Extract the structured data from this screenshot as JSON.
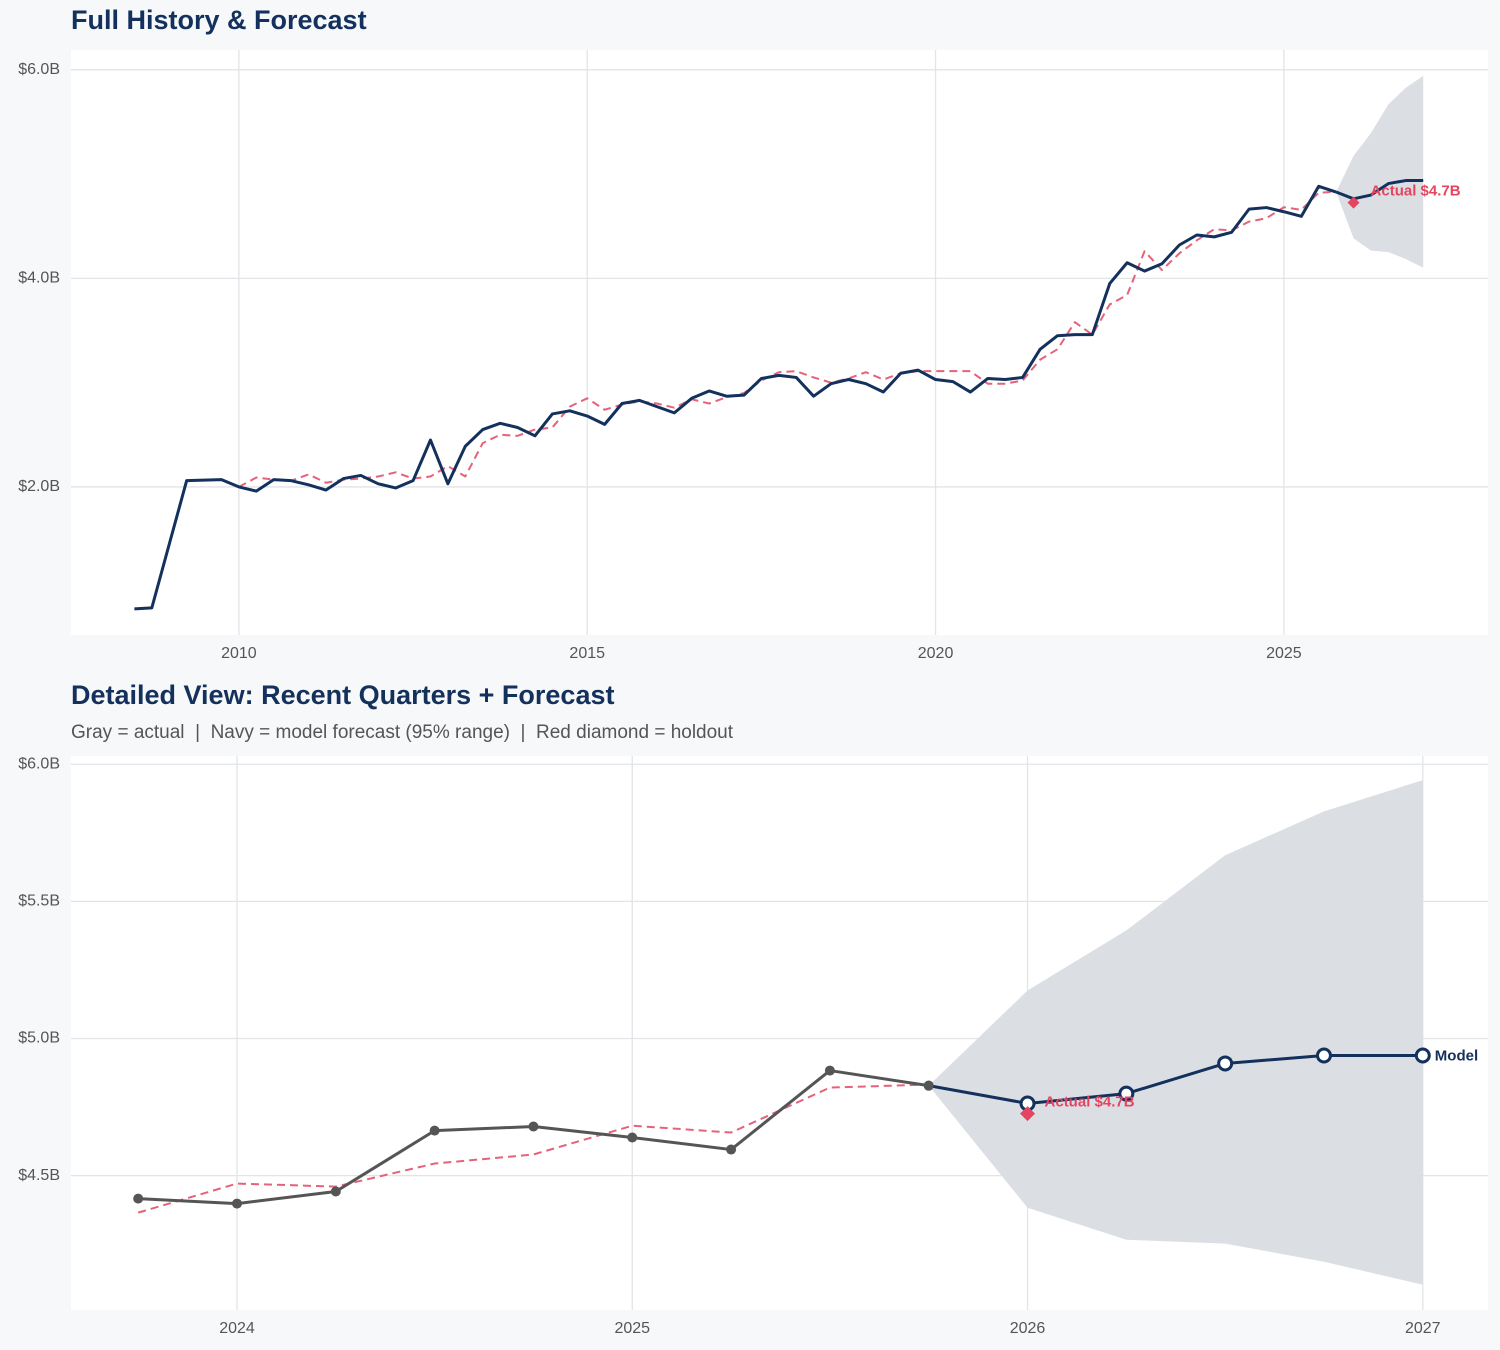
{
  "chart_data": [
    {
      "type": "line",
      "title": "Full History & Forecast",
      "xlim": [
        2007.59,
        2027.93
      ],
      "ylim": [
        0.58,
        6.19
      ],
      "xticks": [
        2010,
        2015,
        2020,
        2025
      ],
      "yticks": [
        {
          "value": 2,
          "label": "$2.0B"
        },
        {
          "value": 4,
          "label": "$4.0B"
        },
        {
          "value": 6,
          "label": "$6.0B"
        }
      ],
      "grid": true,
      "x": [
        2008.5,
        2008.75,
        2009,
        2009.25,
        2009.5,
        2009.75,
        2010,
        2010.25,
        2010.5,
        2010.75,
        2011,
        2011.25,
        2011.5,
        2011.75,
        2012,
        2012.25,
        2012.5,
        2012.75,
        2013,
        2013.25,
        2013.5,
        2013.75,
        2014,
        2014.25,
        2014.5,
        2014.75,
        2015,
        2015.25,
        2015.5,
        2015.75,
        2016,
        2016.25,
        2016.5,
        2016.75,
        2017,
        2017.25,
        2017.5,
        2017.75,
        2018,
        2018.25,
        2018.5,
        2018.75,
        2019,
        2019.25,
        2019.5,
        2019.75,
        2020,
        2020.25,
        2020.5,
        2020.75,
        2021,
        2021.25,
        2021.5,
        2021.75,
        2022,
        2022.25,
        2022.5,
        2022.75,
        2023,
        2023.25,
        2023.5,
        2023.75,
        2024,
        2024.25,
        2024.5,
        2024.75,
        2025,
        2025.25,
        2025.5,
        2025.75,
        2026,
        2026.25,
        2026.5,
        2026.75,
        2027
      ],
      "band": {
        "color": "#d9dde3",
        "lower": [
          null,
          null,
          null,
          null,
          null,
          null,
          null,
          null,
          null,
          null,
          null,
          null,
          null,
          null,
          null,
          null,
          null,
          null,
          null,
          null,
          null,
          null,
          null,
          null,
          null,
          null,
          null,
          null,
          null,
          null,
          null,
          null,
          null,
          null,
          null,
          null,
          null,
          null,
          null,
          null,
          null,
          null,
          null,
          null,
          null,
          null,
          null,
          null,
          null,
          null,
          null,
          null,
          null,
          null,
          null,
          null,
          null,
          null,
          null,
          null,
          null,
          null,
          null,
          null,
          null,
          null,
          null,
          null,
          null,
          4.828,
          4.383,
          4.266,
          4.252,
          4.186,
          4.102
        ],
        "upper": [
          null,
          null,
          null,
          null,
          null,
          null,
          null,
          null,
          null,
          null,
          null,
          null,
          null,
          null,
          null,
          null,
          null,
          null,
          null,
          null,
          null,
          null,
          null,
          null,
          null,
          null,
          null,
          null,
          null,
          null,
          null,
          null,
          null,
          null,
          null,
          null,
          null,
          null,
          null,
          null,
          null,
          null,
          null,
          null,
          null,
          null,
          null,
          null,
          null,
          null,
          null,
          null,
          null,
          null,
          null,
          null,
          null,
          null,
          null,
          null,
          null,
          null,
          null,
          null,
          null,
          null,
          null,
          null,
          null,
          4.828,
          5.175,
          5.394,
          5.668,
          5.828,
          5.942
        ]
      },
      "series": [
        {
          "color": "#e5637a",
          "dash": true,
          "markers": "none",
          "values": [
            null,
            null,
            null,
            null,
            null,
            null,
            2.0,
            2.09,
            2.07,
            2.06,
            2.12,
            2.04,
            2.07,
            2.08,
            2.1,
            2.14,
            2.08,
            2.1,
            2.2,
            2.1,
            2.42,
            2.5,
            2.49,
            2.55,
            2.57,
            2.77,
            2.85,
            2.74,
            2.79,
            2.82,
            2.8,
            2.76,
            2.84,
            2.8,
            2.86,
            2.9,
            3.02,
            3.1,
            3.11,
            3.05,
            3.0,
            3.04,
            3.1,
            3.03,
            3.09,
            3.11,
            3.11,
            3.11,
            3.11,
            2.99,
            2.99,
            3.02,
            3.22,
            3.32,
            3.58,
            3.46,
            3.75,
            3.84,
            4.26,
            4.08,
            4.24,
            4.365,
            4.471,
            4.46,
            4.544,
            4.577,
            4.682,
            4.657,
            4.821,
            4.832,
            null,
            null,
            null,
            null,
            null
          ]
        },
        {
          "color": "#13315c",
          "dash": false,
          "markers": "none",
          "values": [
            0.83,
            0.84,
            1.45,
            2.06,
            2.065,
            2.07,
            2.0,
            1.96,
            2.07,
            2.06,
            2.02,
            1.97,
            2.08,
            2.11,
            2.03,
            1.99,
            2.06,
            2.45,
            2.03,
            2.39,
            2.55,
            2.61,
            2.57,
            2.49,
            2.7,
            2.73,
            2.68,
            2.6,
            2.8,
            2.83,
            2.77,
            2.71,
            2.85,
            2.92,
            2.87,
            2.88,
            3.04,
            3.07,
            3.05,
            2.87,
            2.99,
            3.03,
            2.99,
            2.91,
            3.09,
            3.12,
            3.03,
            3.01,
            2.91,
            3.04,
            3.03,
            3.05,
            3.32,
            3.45,
            3.46,
            3.46,
            3.95,
            4.15,
            4.07,
            4.14,
            4.32,
            4.416,
            4.398,
            4.442,
            4.664,
            4.679,
            4.639,
            4.595,
            4.883,
            4.828,
            null,
            null,
            null,
            null,
            null
          ]
        },
        {
          "color": "#13315c",
          "dash": false,
          "markers": "none",
          "values": [
            null,
            null,
            null,
            null,
            null,
            null,
            null,
            null,
            null,
            null,
            null,
            null,
            null,
            null,
            null,
            null,
            null,
            null,
            null,
            null,
            null,
            null,
            null,
            null,
            null,
            null,
            null,
            null,
            null,
            null,
            null,
            null,
            null,
            null,
            null,
            null,
            null,
            null,
            null,
            null,
            null,
            null,
            null,
            null,
            null,
            null,
            null,
            null,
            null,
            null,
            null,
            null,
            null,
            null,
            null,
            null,
            null,
            null,
            null,
            null,
            null,
            null,
            null,
            null,
            null,
            null,
            null,
            null,
            null,
            4.828,
            4.763,
            4.799,
            4.909,
            4.938,
            4.938
          ]
        }
      ],
      "holdout": {
        "x": 2026,
        "value": 4.726,
        "label": "Actual $4.7B",
        "color": "#e5455f"
      }
    },
    {
      "type": "line",
      "title": "Detailed View: Recent Quarters + Forecast",
      "subtitle": "Gray = actual  |  Navy = model forecast (95% range)  |  Red diamond = holdout",
      "xlim": [
        2023.58,
        2027.165
      ],
      "ylim": [
        4.01,
        6.03
      ],
      "xticks": [
        2024,
        2025,
        2026,
        2027
      ],
      "yticks": [
        {
          "value": 4.5,
          "label": "$4.5B"
        },
        {
          "value": 5,
          "label": "$5.0B"
        },
        {
          "value": 5.5,
          "label": "$5.5B"
        },
        {
          "value": 6,
          "label": "$6.0B"
        }
      ],
      "grid": true,
      "x": [
        2023.75,
        2024,
        2024.25,
        2024.5,
        2024.75,
        2025,
        2025.25,
        2025.5,
        2025.75,
        2026,
        2026.25,
        2026.5,
        2026.75,
        2027
      ],
      "band": {
        "color": "#d9dde3",
        "lower": [
          null,
          null,
          null,
          null,
          null,
          null,
          null,
          null,
          4.828,
          4.383,
          4.266,
          4.252,
          4.186,
          4.102
        ],
        "upper": [
          null,
          null,
          null,
          null,
          null,
          null,
          null,
          null,
          4.828,
          5.175,
          5.394,
          5.668,
          5.828,
          5.942
        ]
      },
      "series": [
        {
          "color": "#e5637a",
          "dash": true,
          "markers": "none",
          "values": [
            4.365,
            4.471,
            4.46,
            4.544,
            4.577,
            4.682,
            4.657,
            4.821,
            4.832,
            null,
            null,
            null,
            null,
            null
          ]
        },
        {
          "color": "#555555",
          "dash": false,
          "markers": "filled",
          "values": [
            4.416,
            4.398,
            4.442,
            4.664,
            4.679,
            4.639,
            4.595,
            4.883,
            4.828,
            null,
            null,
            null,
            null,
            null
          ]
        },
        {
          "name": "Model",
          "color": "#13315c",
          "dash": false,
          "markers": "open",
          "values": [
            null,
            null,
            null,
            null,
            null,
            null,
            null,
            null,
            4.828,
            4.763,
            4.799,
            4.909,
            4.938,
            4.938
          ]
        }
      ],
      "holdout": {
        "x": 2026,
        "value": 4.726,
        "label": "Actual $4.7B",
        "color": "#e5455f"
      }
    }
  ]
}
